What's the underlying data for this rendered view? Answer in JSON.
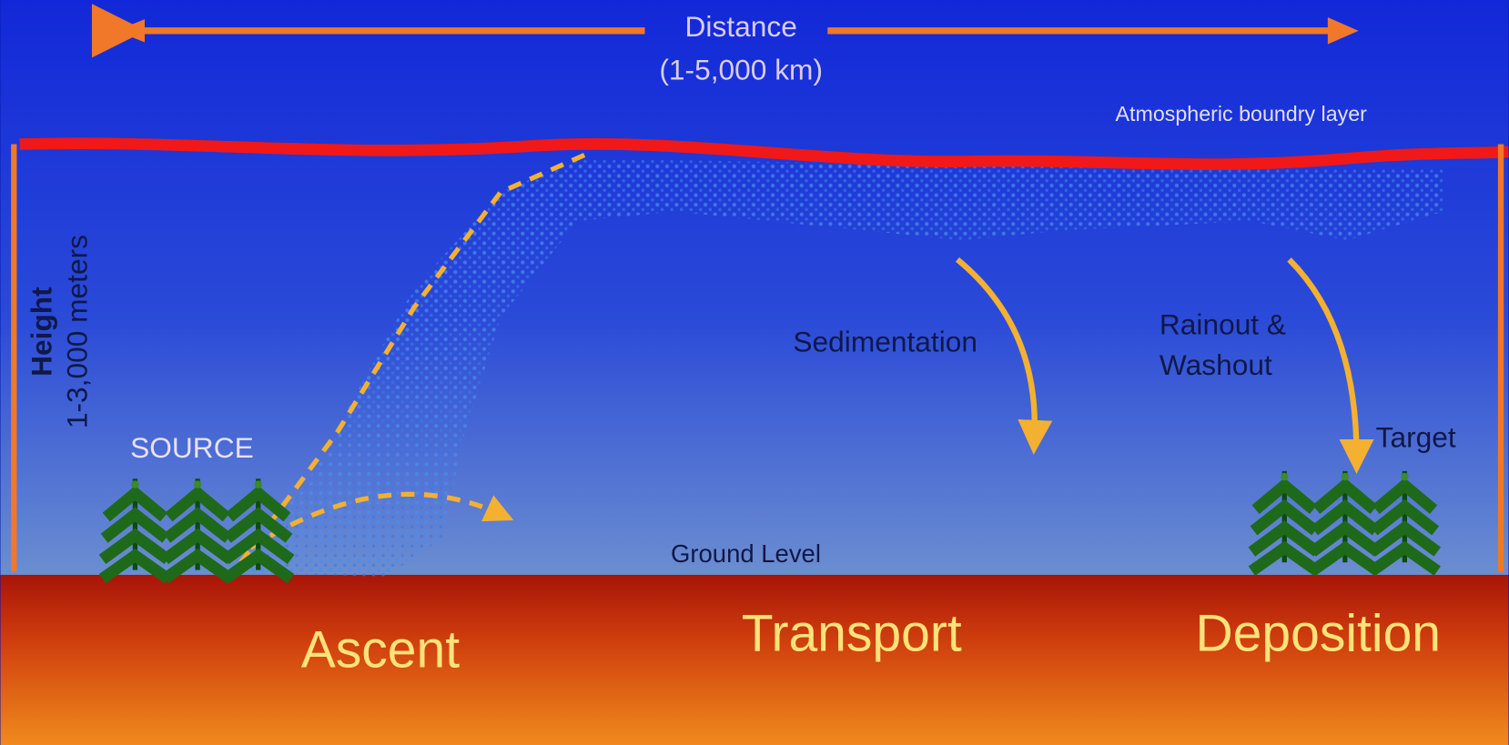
{
  "distance": {
    "label": "Distance",
    "range": "(1-5,000 km)"
  },
  "boundary_layer": "Atmospheric boundry layer",
  "height": {
    "label": "Height",
    "range": "1-3,000 meters"
  },
  "sedimentation": "Sedimentation",
  "rainout": [
    "Rainout &",
    "Washout"
  ],
  "source": "SOURCE",
  "target": "Target",
  "ground": "Ground Level",
  "stages": [
    "Ascent",
    "Transport",
    "Deposition"
  ]
}
